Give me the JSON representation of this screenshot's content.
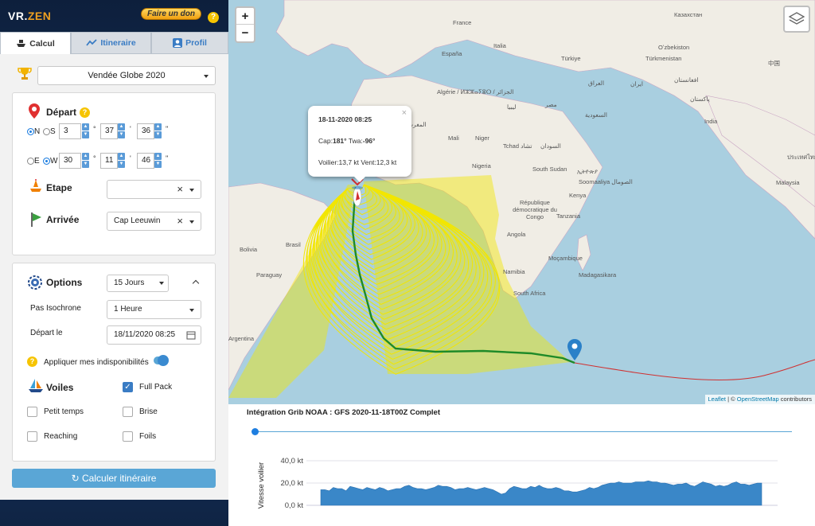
{
  "header": {
    "logo_prefix": "VR.",
    "logo_suffix": "ZEN",
    "donate_label": "Faire un don",
    "help_label": "?"
  },
  "tabs": [
    {
      "label": "Calcul",
      "icon": "ship-icon",
      "active": true
    },
    {
      "label": "Itineraire",
      "icon": "chart-line-icon",
      "active": false
    },
    {
      "label": "Profil",
      "icon": "user-icon",
      "active": false
    }
  ],
  "race": {
    "icon": "trophy-icon",
    "selected": "Vendée Globe 2020"
  },
  "depart": {
    "label": "Départ",
    "lat": {
      "hemisphere_options": [
        "N",
        "S"
      ],
      "selected": "N",
      "deg": "3",
      "min": "37",
      "sec": "36"
    },
    "lon": {
      "hemisphere_options": [
        "E",
        "W"
      ],
      "selected": "W",
      "deg": "30",
      "min": "11",
      "sec": "46"
    },
    "deg_unit": "°",
    "min_unit": "'",
    "sec_unit": "''"
  },
  "etape": {
    "label": "Etape",
    "value": ""
  },
  "arrivee": {
    "label": "Arrivée",
    "value": "Cap Leeuwin"
  },
  "options": {
    "label": "Options",
    "duration": "15 Jours",
    "pas_label": "Pas Isochrone",
    "pas_value": "1 Heure",
    "depart_le_label": "Départ le",
    "depart_le_value": "18/11/2020 08:25",
    "dispo_label": "Appliquer mes indisponibilités",
    "dispo_on": true
  },
  "voiles": {
    "label": "Voiles",
    "items": [
      {
        "label": "Full Pack",
        "checked": true
      },
      {
        "label": "Petit temps",
        "checked": false
      },
      {
        "label": "Brise",
        "checked": false
      },
      {
        "label": "Reaching",
        "checked": false
      },
      {
        "label": "Foils",
        "checked": false
      }
    ]
  },
  "calc_button": "Calculer itinéraire",
  "map": {
    "zoom_in": "+",
    "zoom_out": "−",
    "popup": {
      "date": "18-11-2020 08:25",
      "cap_label": "Cap:",
      "cap_value": "181°",
      "twa_label": "Twa:",
      "twa_value": "-96°",
      "speeds": "Voilier:13,7 kt Vent:12,3 kt",
      "close": "×"
    },
    "labels": {
      "france": "France",
      "italia": "Italia",
      "espana": "España",
      "turkiye": "Türkiye",
      "kazakhstan": "Казахстан",
      "uzbekistan": "Oʻzbekiston",
      "turkmenistan": "Türkmenistan",
      "china": "中国",
      "afghanistan": "افغانستان",
      "iran": "ایران",
      "iraq": "العراق",
      "egypt": "مصر",
      "saudi": "السعودية",
      "pakistan": "پاکستان",
      "india": "India",
      "algeria": "Algérie / ⵍⵣⵣⴰⵢⴻⵔ / الجزائر",
      "morocco": "المغرب",
      "libya": "ليبيا",
      "mali": "Mali",
      "niger": "Niger",
      "tchad": "Tchad تشاد",
      "sudan": "السودان",
      "nigeria": "Nigeria",
      "south_sudan": "South Sudan",
      "ethiopia": "ኢትዮጵያ",
      "somalia": "Soomaaliya الصومال",
      "kenya": "Kenya",
      "rdc": "République démocratique du Congo",
      "tanzania": "Tanzania",
      "angola": "Angola",
      "namibia": "Namibia",
      "south_africa": "South Africa",
      "mozambique": "Moçambique",
      "madagascar": "Madagasikara",
      "brasil": "Brasil",
      "bolivia": "Bolivia",
      "paraguay": "Paraguay",
      "argentina": "Argentina",
      "thailand": "ประเทศไทย",
      "malaysia": "Malaysia"
    },
    "attribution_leaflet": "Leaflet",
    "attribution_sep": " | © ",
    "attribution_osm": "OpenStreetMap",
    "attribution_rest": " contributors"
  },
  "grib_title": "Intégration Grib NOAA : GFS 2020-11-18T00Z Complet",
  "chart_data": {
    "type": "area",
    "title": "",
    "ylabel": "Vitesse voilier",
    "yticks": [
      "0,0 kt",
      "20,0 kt",
      "40,0 kt"
    ],
    "ylim": [
      0,
      40
    ],
    "values": [
      14,
      14,
      13,
      16,
      15,
      15,
      13,
      17,
      16,
      15,
      14,
      16,
      15,
      14,
      16,
      15,
      13,
      14,
      15,
      15,
      17,
      18,
      16,
      15,
      15,
      14,
      15,
      16,
      18,
      17,
      17,
      16,
      14,
      15,
      15,
      16,
      15,
      14,
      15,
      16,
      15,
      14,
      12,
      10,
      11,
      15,
      17,
      16,
      15,
      15,
      17,
      16,
      18,
      16,
      15,
      15,
      16,
      15,
      13,
      13,
      12,
      12,
      13,
      14,
      16,
      15,
      16,
      18,
      19,
      20,
      20,
      21,
      20,
      20,
      20,
      21,
      21,
      21,
      22,
      21,
      21,
      20,
      20,
      19,
      18,
      19,
      19,
      20,
      18,
      17,
      19,
      21,
      20,
      19,
      17,
      18,
      17,
      18,
      20,
      21,
      19,
      19,
      18,
      19,
      20,
      20
    ],
    "color": "#3a87c8"
  }
}
